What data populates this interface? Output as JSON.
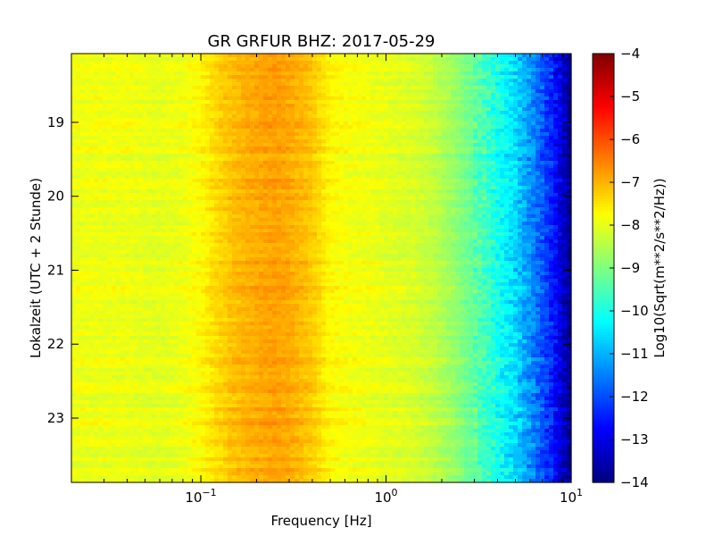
{
  "chart_data": {
    "type": "heatmap",
    "title": "GR GRFUR BHZ: 2017-05-29",
    "xlabel": "Frequency [Hz]",
    "ylabel": "Lokalzeit (UTC + 2 Stunde)",
    "x_scale": "log",
    "xlim": [
      0.02,
      10
    ],
    "x_ticks": [
      {
        "value": 0.1,
        "base": "10",
        "exp": "−1"
      },
      {
        "value": 1,
        "base": "10",
        "exp": "0"
      },
      {
        "value": 10,
        "base": "10",
        "exp": "1"
      }
    ],
    "y_axis_inverted": true,
    "ylim": [
      18.07,
      23.87
    ],
    "y_ticks": [
      "19",
      "20",
      "21",
      "22",
      "23"
    ],
    "colorbar": {
      "label": "Log10(Sqrt(m**2/s**2/Hz))",
      "range": [
        -14,
        -4
      ],
      "ticks": [
        "−4",
        "−5",
        "−6",
        "−7",
        "−8",
        "−9",
        "−10",
        "−11",
        "−12",
        "−13",
        "−14"
      ],
      "colormap": "jet"
    },
    "spectrum_profile": {
      "frequency_hz": [
        0.02,
        0.04,
        0.06,
        0.08,
        0.1,
        0.12,
        0.15,
        0.2,
        0.25,
        0.3,
        0.4,
        0.5,
        0.6,
        0.8,
        1.0,
        1.2,
        1.5,
        2.0,
        2.5,
        3.0,
        4.0,
        5.0,
        6.0,
        7.0,
        8.0,
        10.0
      ],
      "level_log10": [
        -7.9,
        -7.9,
        -8.0,
        -7.9,
        -7.7,
        -7.4,
        -7.1,
        -6.9,
        -6.8,
        -6.9,
        -7.2,
        -7.7,
        -7.8,
        -7.9,
        -8.0,
        -8.05,
        -8.15,
        -8.5,
        -8.9,
        -9.3,
        -10.0,
        -10.6,
        -11.3,
        -11.9,
        -12.5,
        -13.9
      ]
    }
  }
}
